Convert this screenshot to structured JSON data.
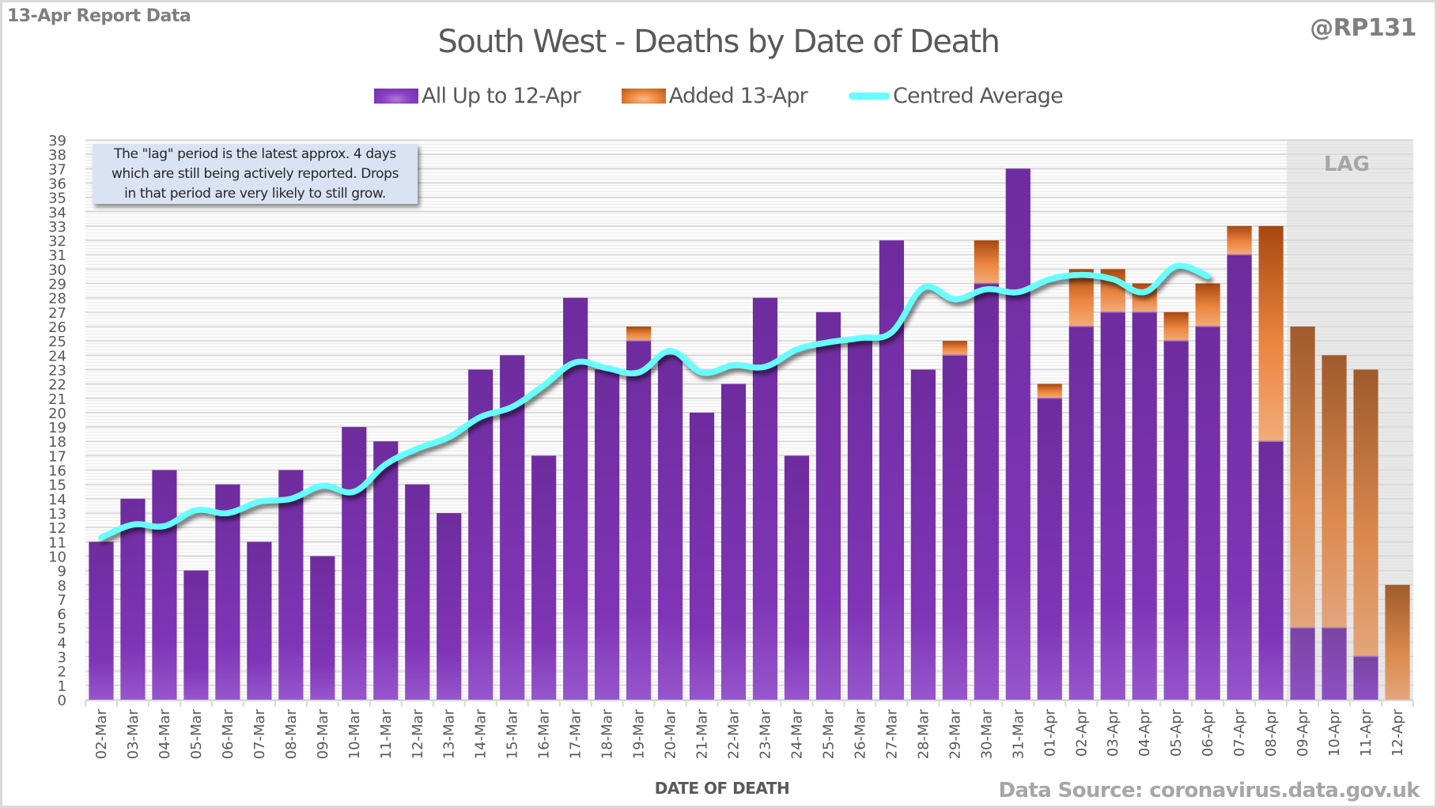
{
  "header": {
    "report_label": "13-Apr Report Data",
    "handle": "@RP131",
    "title": "South West - Deaths by Date of Death"
  },
  "legend": [
    {
      "label": "All Up to 12-Apr",
      "color": "#7030a0"
    },
    {
      "label": "Added 13-Apr",
      "color": "#ed7d31"
    },
    {
      "label": "Centred Average",
      "color": "#66ffff"
    }
  ],
  "annotation": {
    "lines": [
      "The \"lag\" period is the latest approx. 4 days",
      "which are still being actively reported. Drops",
      "in that period are very likely to still grow."
    ]
  },
  "lag_label": "LAG",
  "footer": {
    "x_axis_title": "DATE OF DEATH",
    "source": "Data Source: coronavirus.data.gov.uk"
  },
  "chart_data": {
    "type": "bar",
    "stacked": true,
    "title": "South West - Deaths by Date of Death",
    "xlabel": "DATE OF DEATH",
    "ylabel": "",
    "ylim": [
      0,
      39
    ],
    "ytick_step": 1,
    "grid": true,
    "legend_position": "top",
    "lag_period": [
      "09-Apr",
      "10-Apr",
      "11-Apr",
      "12-Apr"
    ],
    "categories": [
      "02-Mar",
      "03-Mar",
      "04-Mar",
      "05-Mar",
      "06-Mar",
      "07-Mar",
      "08-Mar",
      "09-Mar",
      "10-Mar",
      "11-Mar",
      "12-Mar",
      "13-Mar",
      "14-Mar",
      "15-Mar",
      "16-Mar",
      "17-Mar",
      "18-Mar",
      "19-Mar",
      "20-Mar",
      "21-Mar",
      "22-Mar",
      "23-Mar",
      "24-Mar",
      "25-Mar",
      "26-Mar",
      "27-Mar",
      "28-Mar",
      "29-Mar",
      "30-Mar",
      "31-Mar",
      "01-Apr",
      "02-Apr",
      "03-Apr",
      "04-Apr",
      "05-Apr",
      "06-Apr",
      "07-Apr",
      "08-Apr",
      "09-Apr",
      "10-Apr",
      "11-Apr",
      "12-Apr"
    ],
    "series": [
      {
        "name": "All Up to 12-Apr",
        "kind": "bar",
        "values": [
          11,
          14,
          16,
          9,
          15,
          11,
          16,
          10,
          19,
          18,
          15,
          13,
          23,
          24,
          17,
          28,
          23,
          25,
          24,
          20,
          22,
          28,
          17,
          27,
          25,
          32,
          23,
          24,
          29,
          37,
          21,
          26,
          27,
          27,
          25,
          26,
          31,
          18,
          5,
          5,
          3,
          0
        ]
      },
      {
        "name": "Added 13-Apr",
        "kind": "bar",
        "values": [
          0,
          0,
          0,
          0,
          0,
          0,
          0,
          0,
          0,
          0,
          0,
          0,
          0,
          0,
          0,
          0,
          0,
          1,
          0,
          0,
          0,
          0,
          0,
          0,
          0,
          0,
          0,
          1,
          3,
          0,
          1,
          4,
          3,
          2,
          2,
          3,
          2,
          15,
          21,
          19,
          20,
          8
        ]
      },
      {
        "name": "Centred Average",
        "kind": "line",
        "values": [
          11.3,
          12.2,
          12.1,
          13.2,
          13.0,
          13.8,
          14.0,
          14.9,
          14.5,
          16.4,
          17.5,
          18.3,
          19.7,
          20.4,
          21.9,
          23.5,
          23.1,
          22.8,
          24.3,
          22.8,
          23.3,
          23.2,
          24.4,
          24.9,
          25.2,
          25.6,
          28.7,
          27.9,
          28.6,
          28.4,
          29.3,
          29.6,
          29.3,
          28.4,
          30.2,
          29.5,
          null,
          null,
          null,
          null,
          null,
          null
        ]
      }
    ]
  }
}
